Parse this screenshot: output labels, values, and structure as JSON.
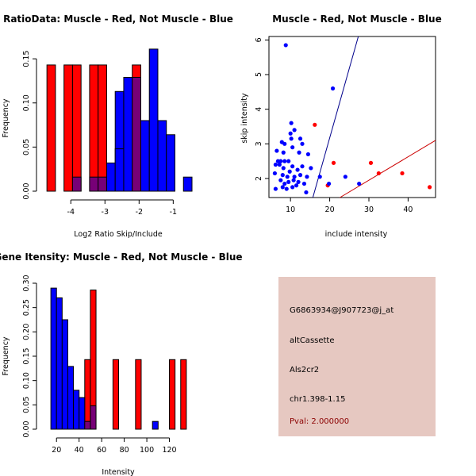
{
  "colors": {
    "muscle": "#ff0000",
    "not_muscle": "#0000ff",
    "overlap": "#770077",
    "info_bg": "#e6c8c1",
    "pval_text": "#8b0000"
  },
  "chart_data": [
    {
      "id": "ratio_hist",
      "type": "bar",
      "title": "RatioData: Muscle - Red, Not Muscle - Blue",
      "xlabel": "Log2 Ratio Skip/Include",
      "ylabel": "Frequency",
      "xlim": [
        -4.75,
        -0.45
      ],
      "ylim": [
        0,
        0.16
      ],
      "xticks": [
        -4,
        -3,
        -2,
        -1
      ],
      "xtick_labels": [
        "-4",
        "-3",
        "-2",
        "-1"
      ],
      "yticks": [
        0,
        0.05,
        0.1,
        0.15
      ],
      "ytick_labels": [
        "0.00",
        "0.05",
        "0.10",
        "0.15"
      ],
      "series": [
        {
          "name": "Muscle",
          "color": "#ff0000",
          "bars": [
            {
              "x0": -4.7,
              "x1": -4.45,
              "y": 0.143
            },
            {
              "x0": -4.2,
              "x1": -3.95,
              "y": 0.143
            },
            {
              "x0": -3.95,
              "x1": -3.7,
              "y": 0.143
            },
            {
              "x0": -3.45,
              "x1": -3.2,
              "y": 0.143
            },
            {
              "x0": -3.2,
              "x1": -2.95,
              "y": 0.143
            },
            {
              "x0": -2.2,
              "x1": -1.95,
              "y": 0.143
            }
          ]
        },
        {
          "name": "Not Muscle",
          "color": "#0000ff",
          "bars": [
            {
              "x0": -3.95,
              "x1": -3.7,
              "y": 0.016
            },
            {
              "x0": -3.45,
              "x1": -3.2,
              "y": 0.016
            },
            {
              "x0": -3.2,
              "x1": -2.95,
              "y": 0.016
            },
            {
              "x0": -2.95,
              "x1": -2.7,
              "y": 0.032
            },
            {
              "x0": -2.7,
              "x1": -2.45,
              "y": 0.048
            },
            {
              "x0": -2.45,
              "x1": -2.2,
              "y": 0.129
            },
            {
              "x0": -2.2,
              "x1": -1.95,
              "y": 0.129
            },
            {
              "x0": -1.95,
              "x1": -1.7,
              "y": 0.08
            },
            {
              "x0": -1.7,
              "x1": -1.45,
              "y": 0.161
            },
            {
              "x0": -1.45,
              "x1": -1.2,
              "y": 0.08
            },
            {
              "x0": -1.2,
              "x1": -0.95,
              "y": 0.064
            },
            {
              "x0": -0.7,
              "x1": -0.45,
              "y": 0.016
            }
          ]
        },
        {
          "name": "Not Muscle (back layer)",
          "color": "#0000ff",
          "bars": [
            {
              "x0": -2.7,
              "x1": -2.45,
              "y": 0.113
            },
            {
              "x0": -2.45,
              "x1": -2.2,
              "y": 0.113
            }
          ]
        }
      ]
    },
    {
      "id": "scatter",
      "type": "scatter",
      "title": "Muscle - Red, Not Muscle - Blue",
      "xlabel": "include intensity",
      "ylabel": "skip intensity",
      "xlim": [
        4.5,
        47
      ],
      "ylim": [
        1.45,
        6.1
      ],
      "xticks": [
        10,
        20,
        30,
        40
      ],
      "xtick_labels": [
        "10",
        "20",
        "30",
        "40"
      ],
      "yticks": [
        2,
        3,
        4,
        5,
        6
      ],
      "ytick_labels": [
        "2",
        "3",
        "4",
        "5",
        "6"
      ],
      "lines": [
        {
          "name": "not-muscle-fit",
          "color": "#00008b",
          "x": [
            15.7,
            27.3
          ],
          "y": [
            1.45,
            6.1
          ]
        },
        {
          "name": "muscle-fit",
          "color": "#cc0000",
          "x": [
            22.6,
            47
          ],
          "y": [
            1.45,
            3.1
          ]
        }
      ],
      "series": [
        {
          "name": "Muscle",
          "color": "#ff0000",
          "points": [
            [
              16.2,
              3.55
            ],
            [
              19.5,
              1.8
            ],
            [
              21.0,
              2.45
            ],
            [
              30.5,
              2.45
            ],
            [
              32.5,
              2.15
            ],
            [
              38.5,
              2.15
            ],
            [
              45.5,
              1.75
            ]
          ]
        },
        {
          "name": "Not Muscle",
          "color": "#0000ff",
          "points": [
            [
              8.8,
              5.85
            ],
            [
              20.8,
              4.6
            ],
            [
              10.2,
              3.6
            ],
            [
              11.0,
              3.4
            ],
            [
              10.0,
              3.3
            ],
            [
              7.8,
              3.05
            ],
            [
              8.5,
              3.0
            ],
            [
              10.2,
              3.15
            ],
            [
              12.5,
              3.15
            ],
            [
              13.0,
              3.0
            ],
            [
              10.5,
              2.9
            ],
            [
              6.5,
              2.8
            ],
            [
              8.2,
              2.75
            ],
            [
              12.2,
              2.75
            ],
            [
              14.5,
              2.7
            ],
            [
              6.8,
              2.5
            ],
            [
              7.5,
              2.5
            ],
            [
              8.5,
              2.5
            ],
            [
              9.5,
              2.5
            ],
            [
              6.2,
              2.4
            ],
            [
              7.2,
              2.4
            ],
            [
              10.5,
              2.35
            ],
            [
              13.0,
              2.35
            ],
            [
              8.2,
              2.3
            ],
            [
              9.8,
              2.2
            ],
            [
              11.8,
              2.25
            ],
            [
              15.2,
              2.3
            ],
            [
              6.0,
              2.15
            ],
            [
              8.0,
              2.1
            ],
            [
              12.5,
              2.1
            ],
            [
              9.2,
              2.05
            ],
            [
              11.0,
              2.05
            ],
            [
              14.2,
              2.05
            ],
            [
              17.5,
              2.05
            ],
            [
              24.0,
              2.05
            ],
            [
              7.5,
              1.95
            ],
            [
              9.5,
              1.9
            ],
            [
              10.8,
              1.95
            ],
            [
              12.0,
              1.9
            ],
            [
              8.5,
              1.85
            ],
            [
              11.5,
              1.8
            ],
            [
              13.5,
              1.85
            ],
            [
              19.8,
              1.85
            ],
            [
              27.5,
              1.85
            ],
            [
              8.0,
              1.75
            ],
            [
              9.0,
              1.7
            ],
            [
              10.5,
              1.75
            ],
            [
              6.2,
              1.7
            ],
            [
              14.0,
              1.6
            ]
          ]
        }
      ]
    },
    {
      "id": "intensity_hist",
      "type": "bar",
      "title": "Gene Itensity: Muscle - Red, Not Muscle - Blue",
      "xlabel": "Intensity",
      "ylabel": "Frequency",
      "xlim": [
        10,
        140
      ],
      "ylim": [
        0,
        0.3
      ],
      "xticks": [
        20,
        40,
        60,
        80,
        100,
        120
      ],
      "xtick_labels": [
        "20",
        "40",
        "60",
        "80",
        "100",
        "120"
      ],
      "yticks": [
        0,
        0.05,
        0.1,
        0.15,
        0.2,
        0.25,
        0.3
      ],
      "ytick_labels": [
        "0.00",
        "0.05",
        "0.10",
        "0.15",
        "0.20",
        "0.25",
        "0.30"
      ],
      "series": [
        {
          "name": "Muscle",
          "color": "#ff0000",
          "bars": [
            {
              "x0": 45,
              "x1": 50,
              "y": 0.143
            },
            {
              "x0": 50,
              "x1": 55,
              "y": 0.286
            },
            {
              "x0": 70,
              "x1": 75,
              "y": 0.143
            },
            {
              "x0": 90,
              "x1": 95,
              "y": 0.143
            },
            {
              "x0": 120,
              "x1": 125,
              "y": 0.143
            },
            {
              "x0": 130,
              "x1": 135,
              "y": 0.143
            }
          ]
        },
        {
          "name": "Not Muscle",
          "color": "#0000ff",
          "bars": [
            {
              "x0": 15,
              "x1": 20,
              "y": 0.29
            },
            {
              "x0": 20,
              "x1": 25,
              "y": 0.27
            },
            {
              "x0": 25,
              "x1": 30,
              "y": 0.225
            },
            {
              "x0": 30,
              "x1": 35,
              "y": 0.129
            },
            {
              "x0": 35,
              "x1": 40,
              "y": 0.08
            },
            {
              "x0": 40,
              "x1": 45,
              "y": 0.065
            },
            {
              "x0": 45,
              "x1": 50,
              "y": 0.016
            },
            {
              "x0": 50,
              "x1": 55,
              "y": 0.048
            },
            {
              "x0": 105,
              "x1": 110,
              "y": 0.016
            }
          ]
        }
      ]
    }
  ],
  "info_panel": {
    "probe_id": "G6863934@J907723@j_at",
    "event_type": "altCassette",
    "gene": "Als2cr2",
    "location": "chr1.398-1.15",
    "pval": "Pval: 2.000000"
  }
}
